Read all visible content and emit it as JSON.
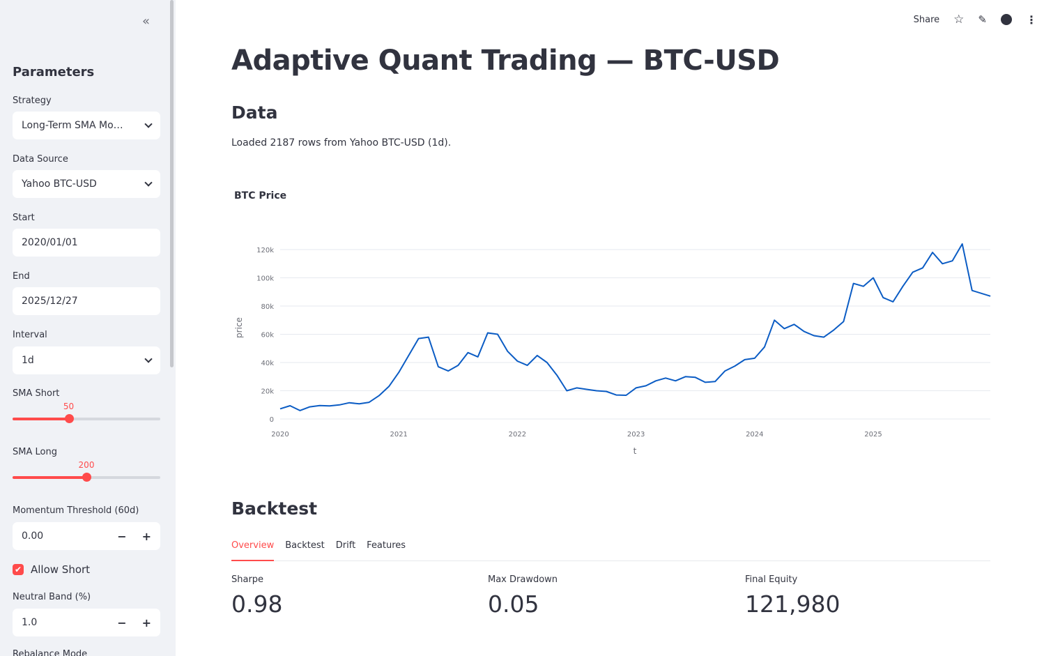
{
  "sidebar": {
    "collapse_icon": "double-chevron-left",
    "title": "Parameters",
    "strategy": {
      "label": "Strategy",
      "value": "Long-Term SMA Mo…"
    },
    "data_source": {
      "label": "Data Source",
      "value": "Yahoo BTC-USD"
    },
    "start": {
      "label": "Start",
      "value": "2020/01/01"
    },
    "end": {
      "label": "End",
      "value": "2025/12/27"
    },
    "interval": {
      "label": "Interval",
      "value": "1d"
    },
    "sma_short": {
      "label": "SMA Short",
      "value": "50",
      "fraction": 0.38
    },
    "sma_long": {
      "label": "SMA Long",
      "value": "200",
      "fraction": 0.5
    },
    "momentum": {
      "label": "Momentum Threshold (60d)",
      "value": "0.00",
      "minus": "−",
      "plus": "+"
    },
    "allow_short": {
      "label": "Allow Short",
      "checked": true
    },
    "neutral_band": {
      "label": "Neutral Band (%)",
      "value": "1.0",
      "minus": "−",
      "plus": "+"
    },
    "rebalance": {
      "label": "Rebalance Mode"
    },
    "accent": "#ff4b4b"
  },
  "header": {
    "share": "Share",
    "icons": [
      "star-icon",
      "pencil-icon",
      "github-icon",
      "more-vertical-icon"
    ]
  },
  "main": {
    "title": "Adaptive Quant Trading — BTC-USD",
    "data_heading": "Data",
    "loaded_text": "Loaded 2187 rows from Yahoo BTC-USD (1d).",
    "backtest_heading": "Backtest",
    "tabs": [
      {
        "label": "Overview",
        "active": true
      },
      {
        "label": "Backtest"
      },
      {
        "label": "Drift"
      },
      {
        "label": "Features"
      }
    ],
    "metrics": [
      {
        "label": "Sharpe",
        "value": "0.98"
      },
      {
        "label": "Max Drawdown",
        "value": "0.05"
      },
      {
        "label": "Final Equity",
        "value": "121,980"
      }
    ]
  },
  "chart_data": {
    "type": "line",
    "title": "BTC Price",
    "xlabel": "t",
    "ylabel": "price",
    "ylim": [
      0,
      125000
    ],
    "yticks": [
      0,
      20000,
      40000,
      60000,
      80000,
      100000,
      120000
    ],
    "ytick_labels": [
      "0",
      "20k",
      "40k",
      "60k",
      "80k",
      "100k",
      "120k"
    ],
    "xticks": [
      "2020",
      "2021",
      "2022",
      "2023",
      "2024",
      "2025"
    ],
    "grid": true,
    "color": "#0b5cc4",
    "x": [
      "2020-01",
      "2020-02",
      "2020-03",
      "2020-04",
      "2020-05",
      "2020-06",
      "2020-07",
      "2020-08",
      "2020-09",
      "2020-10",
      "2020-11",
      "2020-12",
      "2021-01",
      "2021-02",
      "2021-03",
      "2021-04",
      "2021-05",
      "2021-06",
      "2021-07",
      "2021-08",
      "2021-09",
      "2021-10",
      "2021-11",
      "2021-12",
      "2022-01",
      "2022-02",
      "2022-03",
      "2022-04",
      "2022-05",
      "2022-06",
      "2022-07",
      "2022-08",
      "2022-09",
      "2022-10",
      "2022-11",
      "2022-12",
      "2023-01",
      "2023-02",
      "2023-03",
      "2023-04",
      "2023-05",
      "2023-06",
      "2023-07",
      "2023-08",
      "2023-09",
      "2023-10",
      "2023-11",
      "2023-12",
      "2024-01",
      "2024-02",
      "2024-03",
      "2024-04",
      "2024-05",
      "2024-06",
      "2024-07",
      "2024-08",
      "2024-09",
      "2024-10",
      "2024-11",
      "2024-12",
      "2025-01",
      "2025-02",
      "2025-03",
      "2025-04",
      "2025-05",
      "2025-06",
      "2025-07",
      "2025-08",
      "2025-09",
      "2025-10",
      "2025-11",
      "2025-12-27"
    ],
    "y": [
      7200,
      9400,
      6000,
      8600,
      9500,
      9300,
      10000,
      11500,
      10700,
      11800,
      16500,
      23000,
      33000,
      45000,
      57000,
      58000,
      37000,
      34000,
      38000,
      47000,
      44000,
      61000,
      60000,
      48000,
      41000,
      38000,
      45000,
      40000,
      31000,
      20000,
      22000,
      21000,
      20000,
      19500,
      17000,
      16800,
      22000,
      23500,
      27000,
      29000,
      27000,
      30000,
      29500,
      26000,
      26500,
      34000,
      37500,
      42000,
      43000,
      51000,
      70000,
      64000,
      67000,
      62000,
      59000,
      58000,
      63000,
      69000,
      96000,
      94000,
      100000,
      86000,
      83000,
      94000,
      104000,
      107000,
      118000,
      110000,
      112000,
      124000,
      91000,
      87000
    ]
  }
}
